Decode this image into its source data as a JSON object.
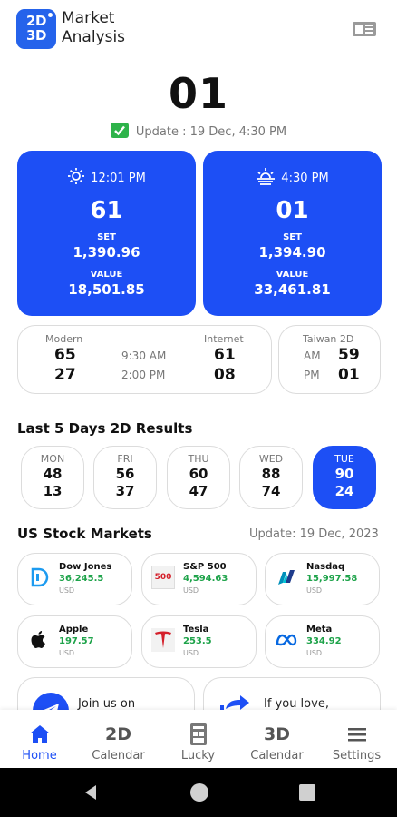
{
  "header": {
    "logo_text_top": "2D",
    "logo_text_bottom": "3D",
    "title_line1": "Market",
    "title_line2": "Analysis",
    "menu_icon": "menu-icon"
  },
  "main_number": "01",
  "update_text": "Update : 19 Dec, 4:30 PM",
  "sessions": [
    {
      "time": "12:01 PM",
      "icon": "sun-icon",
      "number": "61",
      "set_label": "SET",
      "set_value": "1,390.96",
      "value_label": "VALUE",
      "value_value": "18,501.85"
    },
    {
      "time": "4:30 PM",
      "icon": "sunset-icon",
      "number": "01",
      "set_label": "SET",
      "set_value": "1,394.90",
      "value_label": "VALUE",
      "value_value": "33,461.81"
    }
  ],
  "modern_internet": {
    "modern_label": "Modern",
    "internet_label": "Internet",
    "rows": [
      {
        "modern": "65",
        "time": "9:30 AM",
        "internet": "61"
      },
      {
        "modern": "27",
        "time": "2:00 PM",
        "internet": "08"
      }
    ]
  },
  "taiwan": {
    "label": "Taiwan 2D",
    "rows": [
      {
        "period": "AM",
        "value": "59"
      },
      {
        "period": "PM",
        "value": "01"
      }
    ]
  },
  "last5": {
    "title": "Last 5 Days 2D Results",
    "days": [
      {
        "day": "MON",
        "top": "48",
        "bottom": "13",
        "active": false
      },
      {
        "day": "FRI",
        "top": "56",
        "bottom": "37",
        "active": false
      },
      {
        "day": "THU",
        "top": "60",
        "bottom": "47",
        "active": false
      },
      {
        "day": "WED",
        "top": "88",
        "bottom": "74",
        "active": false
      },
      {
        "day": "TUE",
        "top": "90",
        "bottom": "24",
        "active": true
      }
    ]
  },
  "us_stocks": {
    "title": "US Stock Markets",
    "update": "Update: 19 Dec, 2023",
    "items": [
      {
        "name": "Dow Jones",
        "value": "36,245.5",
        "currency": "USD"
      },
      {
        "name": "S&P 500",
        "value": "4,594.63",
        "currency": "USD",
        "logo_text": "500"
      },
      {
        "name": "Nasdaq",
        "value": "15,997.58",
        "currency": "USD"
      },
      {
        "name": "Apple",
        "value": "197.57",
        "currency": "USD"
      },
      {
        "name": "Tesla",
        "value": "253.5",
        "currency": "USD"
      },
      {
        "name": "Meta",
        "value": "334.92",
        "currency": "USD"
      }
    ]
  },
  "promos": [
    {
      "text": "Join us on",
      "icon": "telegram-icon"
    },
    {
      "text": "If you love,",
      "icon": "share-icon"
    }
  ],
  "bottom_nav": [
    {
      "label": "Home",
      "icon": "home-icon",
      "active": true
    },
    {
      "label": "Calendar",
      "icon_text": "2D",
      "active": false
    },
    {
      "label": "Lucky",
      "icon": "lucky-icon",
      "active": false
    },
    {
      "label": "Calendar",
      "icon_text": "3D",
      "active": false
    },
    {
      "label": "Settings",
      "icon": "settings-icon",
      "active": false
    }
  ],
  "colors": {
    "primary_blue": "#1d4ff5",
    "stock_green": "#1ea34a",
    "check_green": "#2eb34a",
    "tesla_red": "#d41f2a",
    "meta_blue": "#0668e1"
  }
}
